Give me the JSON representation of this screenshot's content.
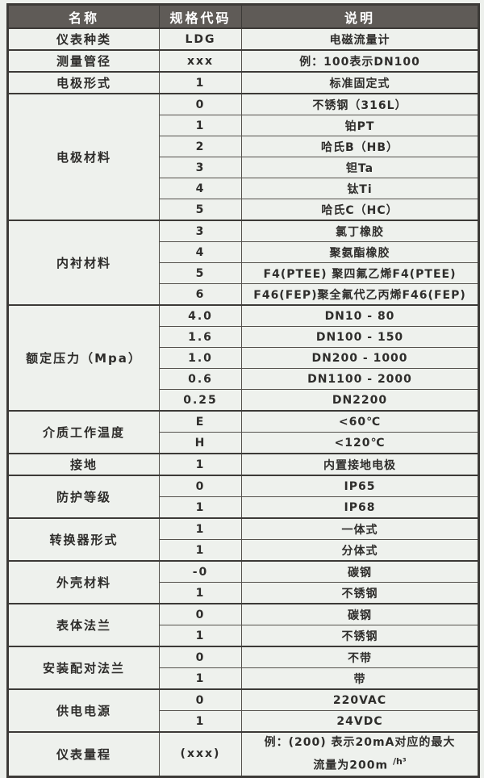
{
  "table": {
    "columns": [
      "名称",
      "规格代码",
      "说明"
    ],
    "groups": [
      {
        "name": "仪表种类",
        "rows": [
          {
            "code": "LDG",
            "desc": "电磁流量计"
          }
        ]
      },
      {
        "name": "测量管径",
        "rows": [
          {
            "code": "xxx",
            "desc": "例：100表示DN100"
          }
        ]
      },
      {
        "name": "电极形式",
        "rows": [
          {
            "code": "1",
            "desc": "标准固定式"
          }
        ]
      },
      {
        "name": "电极材料",
        "rows": [
          {
            "code": "0",
            "desc": "不锈钢（316L）"
          },
          {
            "code": "1",
            "desc": "铂PT"
          },
          {
            "code": "2",
            "desc": "哈氏B（HB）"
          },
          {
            "code": "3",
            "desc": "钽Ta"
          },
          {
            "code": "4",
            "desc": "钛Ti"
          },
          {
            "code": "5",
            "desc": "哈氏C（HC）"
          }
        ]
      },
      {
        "name": "内衬材料",
        "rows": [
          {
            "code": "3",
            "desc": "氯丁橡胶"
          },
          {
            "code": "4",
            "desc": "聚氨酯橡胶"
          },
          {
            "code": "5",
            "desc": "F4(PTEE) 聚四氟乙烯F4(PTEE)"
          },
          {
            "code": "6",
            "desc": "F46(FEP)聚全氟代乙丙烯F46(FEP)"
          }
        ]
      },
      {
        "name": "额定压力（Mpa）",
        "rows": [
          {
            "code": "4.0",
            "desc": "DN10 - 80"
          },
          {
            "code": "1.6",
            "desc": "DN100 - 150"
          },
          {
            "code": "1.0",
            "desc": "DN200 - 1000"
          },
          {
            "code": "0.6",
            "desc": "DN1100 - 2000"
          },
          {
            "code": "0.25",
            "desc": "DN2200"
          }
        ]
      },
      {
        "name": "介质工作温度",
        "rows": [
          {
            "code": "E",
            "desc": "<60℃"
          },
          {
            "code": "H",
            "desc": "<120℃"
          }
        ]
      },
      {
        "name": "接地",
        "rows": [
          {
            "code": "1",
            "desc": "内置接地电极"
          }
        ]
      },
      {
        "name": "防护等级",
        "rows": [
          {
            "code": "0",
            "desc": "IP65"
          },
          {
            "code": "1",
            "desc": "IP68"
          }
        ]
      },
      {
        "name": "转换器形式",
        "rows": [
          {
            "code": "1",
            "desc": "一体式"
          },
          {
            "code": "1",
            "desc": "分体式"
          }
        ]
      },
      {
        "name": "外壳材料",
        "rows": [
          {
            "code": "-0",
            "desc": "碳钢"
          },
          {
            "code": "1",
            "desc": "不锈钢"
          }
        ]
      },
      {
        "name": "表体法兰",
        "rows": [
          {
            "code": "0",
            "desc": "碳钢"
          },
          {
            "code": "1",
            "desc": "不锈钢"
          }
        ]
      },
      {
        "name": "安装配对法兰",
        "rows": [
          {
            "code": "0",
            "desc": "不带"
          },
          {
            "code": "1",
            "desc": "带"
          }
        ]
      },
      {
        "name": "供电电源",
        "rows": [
          {
            "code": "0",
            "desc": "220VAC"
          },
          {
            "code": "1",
            "desc": "24VDC"
          }
        ]
      },
      {
        "name": "仪表量程",
        "rows": [
          {
            "code": "(xxx)",
            "desc": "例：(200) 表示20mA对应的最大",
            "desc2": "流量为200m",
            "desc2_sup": "/h³",
            "tall": true
          }
        ]
      }
    ]
  },
  "colors": {
    "header_bg": "#5f5b57",
    "header_text": "#ffffff",
    "cell_bg": "#eef1ed",
    "border": "#3c3a37",
    "text": "#2e2d2b"
  }
}
